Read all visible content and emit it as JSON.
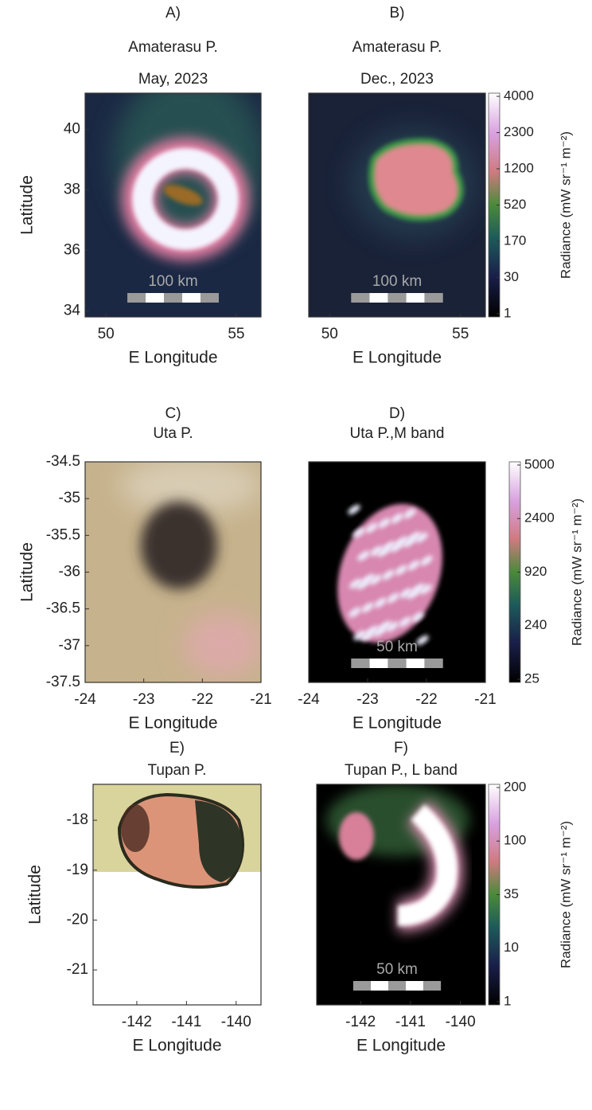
{
  "chart_data": [
    {
      "type": "image",
      "label": "A)",
      "title": "Amaterasu P.",
      "subtitle": "May, 2023",
      "xlabel": "E Longitude",
      "ylabel": "Latitude",
      "xlim": [
        49.2,
        55.95
      ],
      "xticks": [
        50,
        55
      ],
      "ylim": [
        33.8,
        41.2
      ],
      "yticks": [
        34,
        36,
        38,
        40
      ],
      "scale_bar": "100 km"
    },
    {
      "type": "image",
      "label": "B)",
      "title": "Amaterasu P.",
      "subtitle": "Dec., 2023",
      "xlabel": "E Longitude",
      "xlim": [
        49.2,
        55.95
      ],
      "xticks": [
        50,
        55
      ],
      "ylim": [
        33.8,
        41.2
      ],
      "scale_bar": "100 km",
      "colorbar": {
        "label": "Radiance (mW sr⁻¹ m⁻²)",
        "ticks": [
          4000,
          2300,
          1200,
          520,
          170,
          30,
          1
        ]
      }
    },
    {
      "type": "image",
      "label": "C)",
      "title": "Uta P.",
      "xlabel": "E Longitude",
      "ylabel": "Latitude",
      "xlim": [
        -24,
        -21
      ],
      "xticks": [
        -24,
        -23,
        -22,
        -21
      ],
      "ylim": [
        -37.5,
        -34.5
      ],
      "yticks": [
        -34.5,
        -35,
        -35.5,
        -36,
        -36.5,
        -37,
        -37.5
      ]
    },
    {
      "type": "image",
      "label": "D)",
      "title": "Uta P.,M band",
      "xlabel": "E Longitude",
      "xlim": [
        -24,
        -21
      ],
      "xticks": [
        -24,
        -23,
        -22,
        -21
      ],
      "ylim": [
        -37.5,
        -34.5
      ],
      "scale_bar": "50 km",
      "colorbar": {
        "label": "Radiance (mW sr⁻¹ m⁻²)",
        "ticks": [
          5000,
          2400,
          920,
          240,
          25
        ]
      }
    },
    {
      "type": "image",
      "label": "E)",
      "title": "Tupan P.",
      "xlabel": "E Longitude",
      "ylabel": "Latitude",
      "xlim": [
        -142.88,
        -139.5
      ],
      "xticks": [
        -142,
        -141,
        -140
      ],
      "ylim": [
        -21.7,
        -17.28
      ],
      "yticks": [
        -18,
        -19,
        -20,
        -21
      ]
    },
    {
      "type": "image",
      "label": "F)",
      "title": "Tupan P., L band",
      "xlabel": "E Longitude",
      "xlim": [
        -142.88,
        -139.5
      ],
      "xticks": [
        -142,
        -141,
        -140
      ],
      "ylim": [
        -21.7,
        -17.28
      ],
      "scale_bar": "50 km",
      "colorbar": {
        "label": "Radiance (mW sr⁻¹ m⁻²)",
        "ticks": [
          200,
          100,
          35,
          10,
          1
        ]
      }
    }
  ]
}
